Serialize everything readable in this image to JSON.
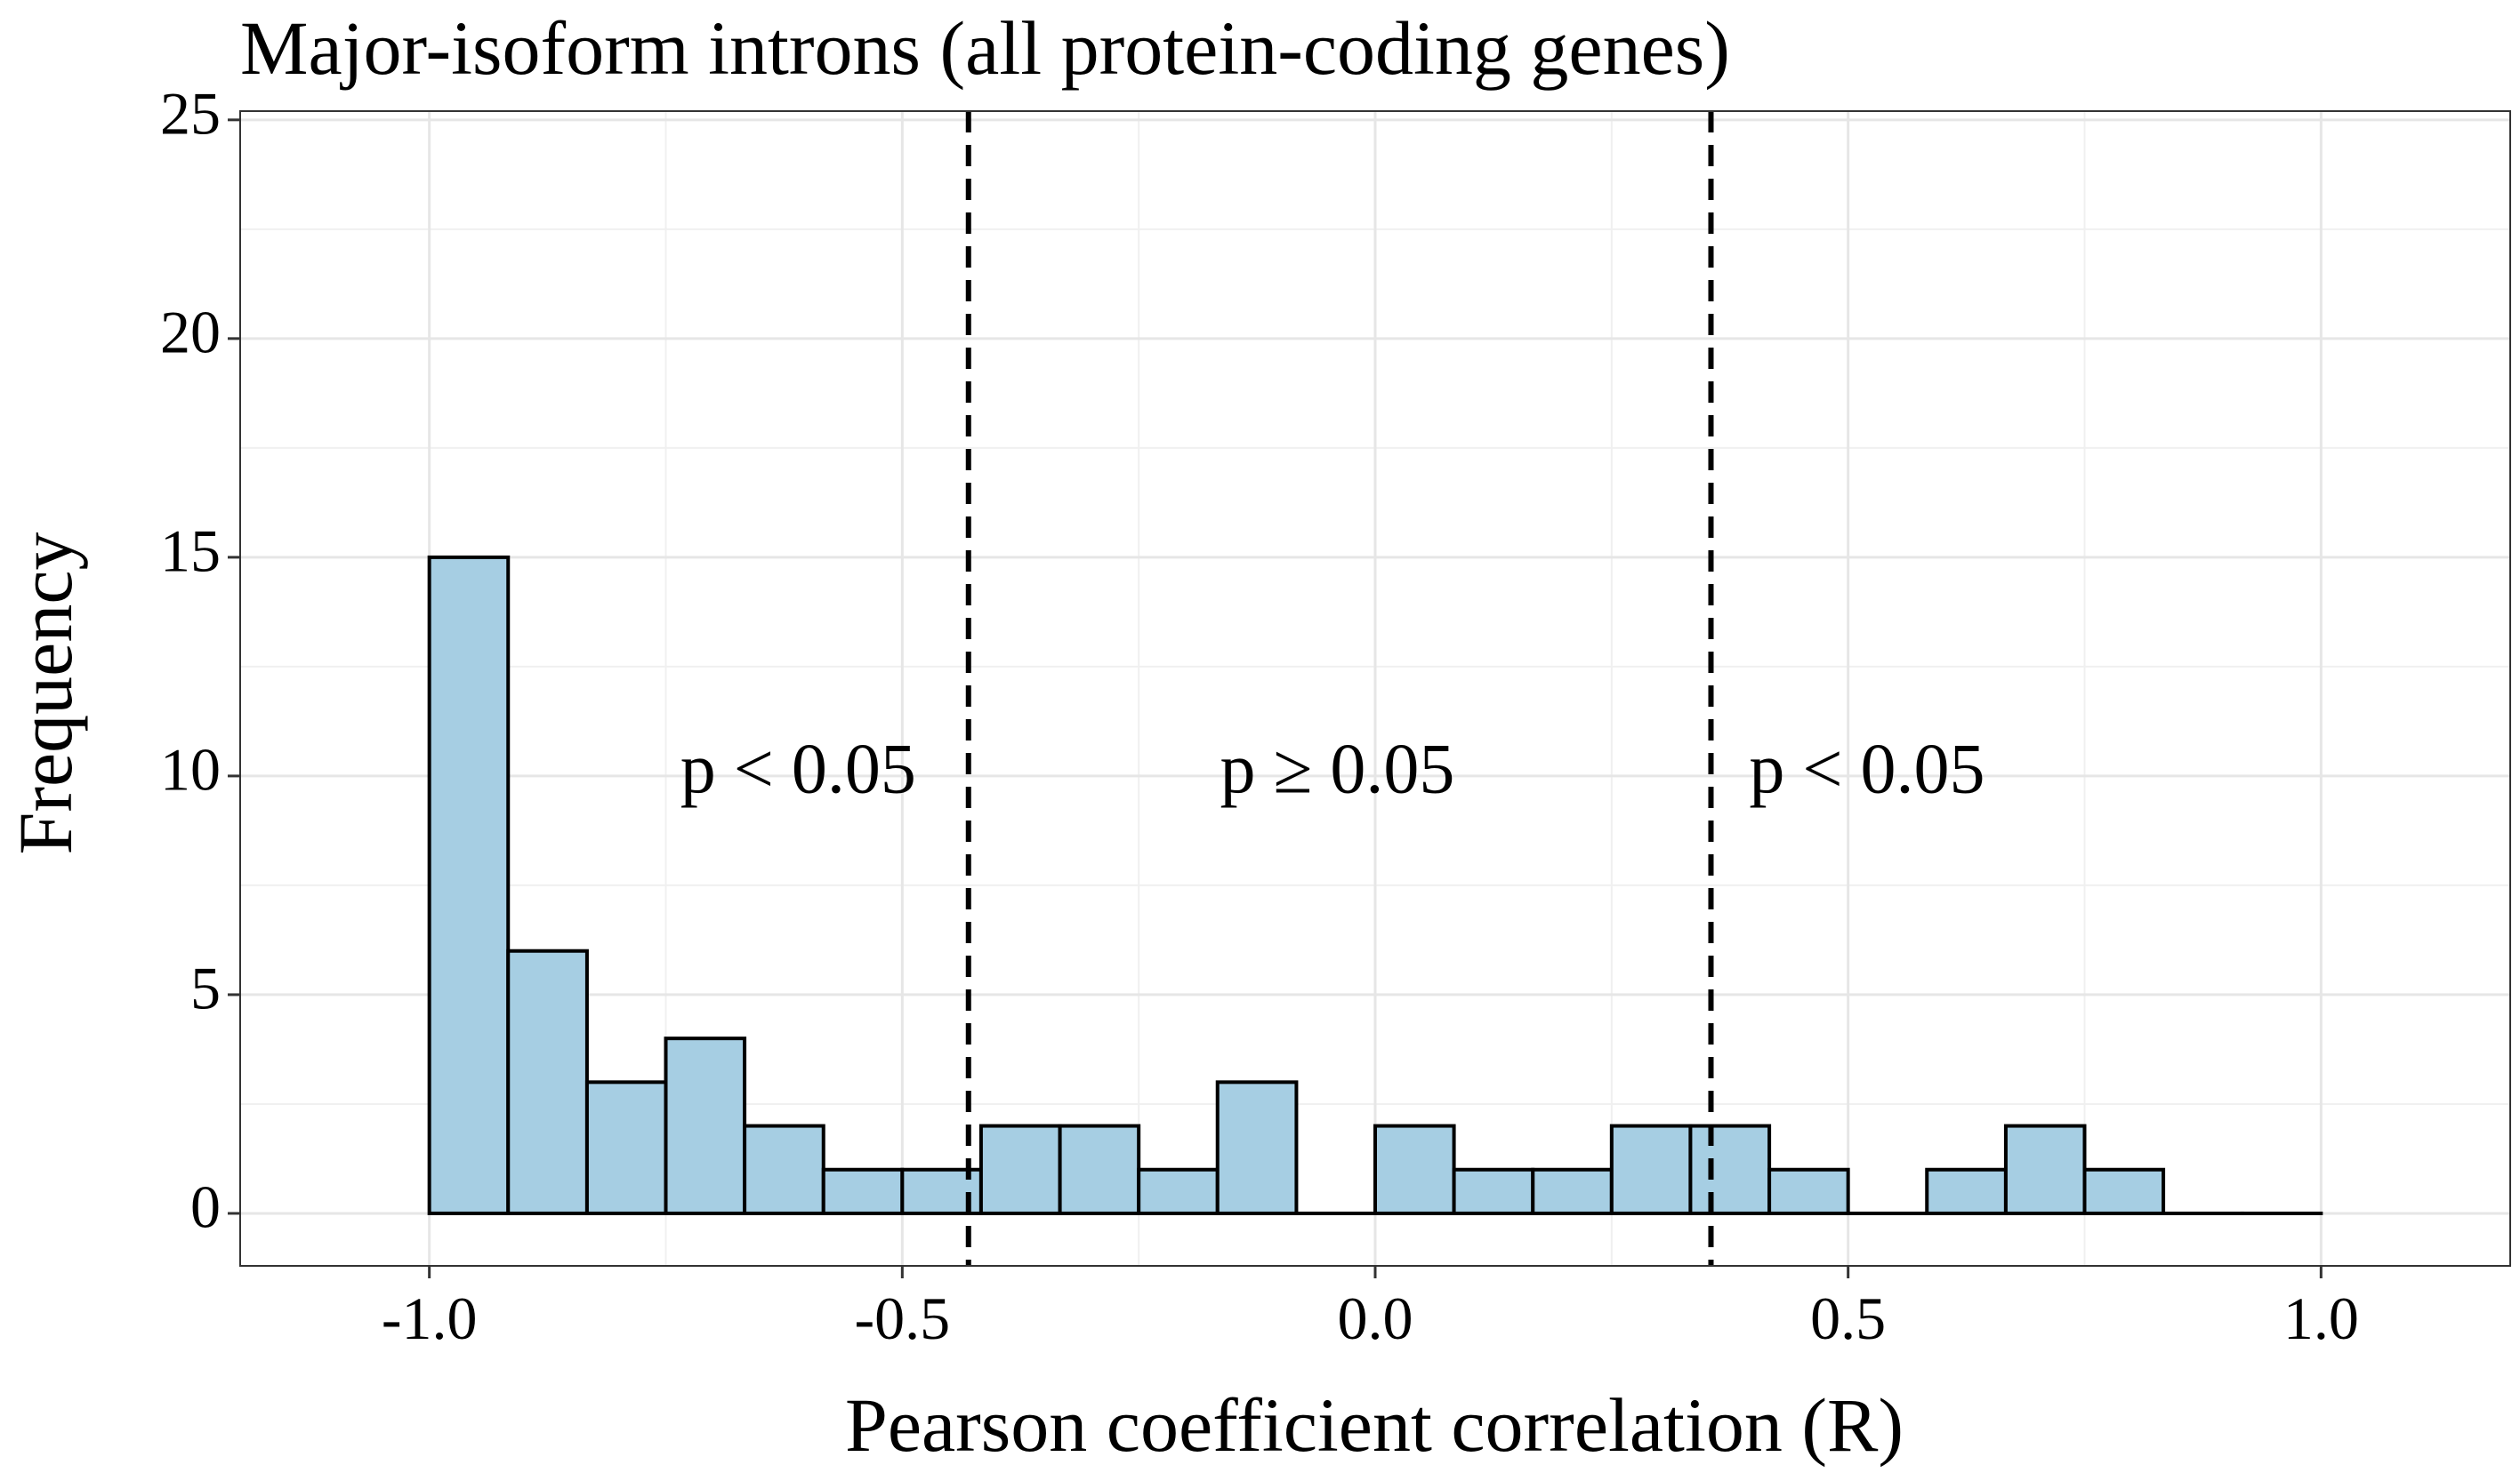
{
  "chart_data": {
    "type": "bar",
    "subtype": "histogram",
    "title": "Major-isoform introns (all protein-coding genes)",
    "xlabel": "Pearson coefficient correlation (R)",
    "ylabel": "Frequency",
    "xlim": [
      -1.2,
      1.2
    ],
    "ylim": [
      -1.2,
      25.2
    ],
    "x_ticks": [
      -1.0,
      -0.5,
      0.0,
      0.5,
      1.0
    ],
    "x_tick_labels": [
      "-1.0",
      "-0.5",
      "0.0",
      "0.5",
      "1.0"
    ],
    "y_ticks": [
      0,
      5,
      10,
      15,
      20,
      25
    ],
    "y_tick_labels": [
      "0",
      "5",
      "10",
      "15",
      "20",
      "25"
    ],
    "bin_edges": [
      -1.0,
      -0.9167,
      -0.8333,
      -0.75,
      -0.6667,
      -0.5833,
      -0.5,
      -0.4167,
      -0.3333,
      -0.25,
      -0.1667,
      -0.0833,
      0.0,
      0.0833,
      0.1667,
      0.25,
      0.3333,
      0.4167,
      0.5,
      0.5833,
      0.6667,
      0.75,
      0.8333,
      0.9167,
      1.0
    ],
    "counts": [
      15,
      6,
      3,
      4,
      2,
      1,
      1,
      2,
      2,
      1,
      3,
      0,
      2,
      1,
      1,
      2,
      2,
      1,
      0,
      1,
      2,
      1,
      0,
      0
    ],
    "bar_fill": "#a6cee3",
    "bar_stroke": "#000000",
    "grid": true,
    "vlines": [
      -0.43,
      0.355
    ],
    "annotations": [
      {
        "text": "p < 0.05",
        "x": -0.61,
        "y": 10
      },
      {
        "text": "p  ≥  0.05",
        "x": -0.04,
        "y": 10
      },
      {
        "text": "p < 0.05",
        "x": 0.52,
        "y": 10
      }
    ]
  }
}
